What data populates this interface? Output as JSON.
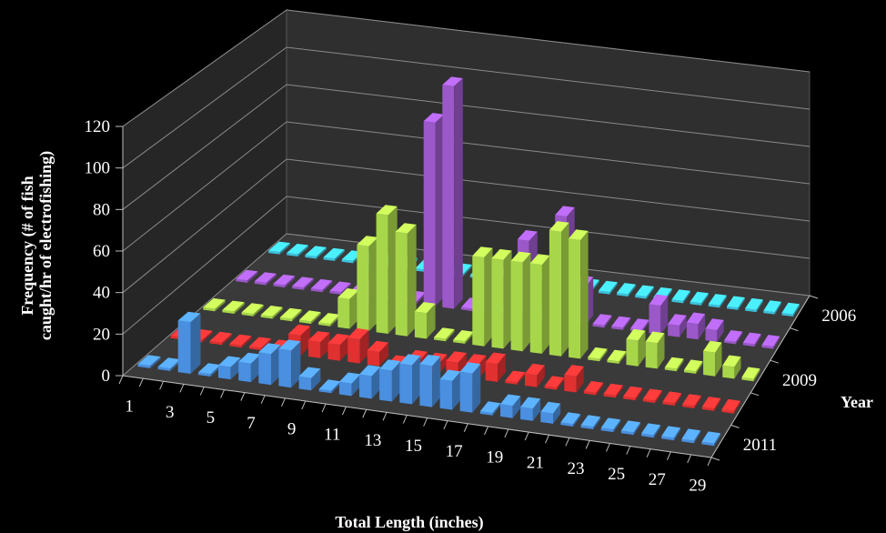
{
  "chart_data": {
    "type": "bar",
    "variant": "3d-bar",
    "title": "",
    "xlabel": "Total Length (inches)",
    "ylabel_lines": [
      "Frequency (# of fish",
      "caught/hr of electrofishing)"
    ],
    "zlabel": "Year",
    "ylim": [
      0,
      120
    ],
    "yticks": [
      "0",
      "20",
      "40",
      "60",
      "80",
      "100",
      "120"
    ],
    "categories": [
      "1",
      "2",
      "3",
      "4",
      "5",
      "6",
      "7",
      "8",
      "9",
      "10",
      "11",
      "12",
      "13",
      "14",
      "15",
      "16",
      "17",
      "18",
      "19",
      "20",
      "21",
      "22",
      "23",
      "24",
      "25",
      "26",
      "27",
      "28",
      "29"
    ],
    "x_tick_labels": [
      "1",
      "3",
      "5",
      "7",
      "9",
      "11",
      "13",
      "15",
      "17",
      "19",
      "21",
      "23",
      "25",
      "27",
      "29"
    ],
    "depth_tick_labels": [
      "2006",
      "2009",
      "2011"
    ],
    "grid": true,
    "legend": "none",
    "series": [
      {
        "name": "2011",
        "color": "#4a8fe0",
        "values": [
          0,
          0,
          25,
          0,
          6,
          9,
          15,
          18,
          6,
          0,
          6,
          11,
          15,
          19,
          20,
          14,
          19,
          0,
          6,
          6,
          5,
          0,
          0,
          0,
          0,
          0,
          0,
          0,
          0
        ]
      },
      {
        "name": "",
        "color": "#e03030",
        "values": [
          0,
          0,
          0,
          0,
          0,
          0,
          10,
          8,
          8,
          12,
          7,
          0,
          5,
          5,
          7,
          7,
          9,
          0,
          6,
          0,
          8,
          0,
          0,
          0,
          0,
          0,
          0,
          0,
          0
        ]
      },
      {
        "name": "2009",
        "color": "#a8d64a",
        "values": [
          0,
          0,
          0,
          0,
          0,
          0,
          0,
          15,
          43,
          60,
          52,
          13,
          0,
          0,
          45,
          45,
          45,
          45,
          63,
          60,
          0,
          0,
          13,
          13,
          0,
          0,
          12,
          6,
          0
        ]
      },
      {
        "name": "",
        "color": "#9a58c8",
        "values": [
          0,
          0,
          0,
          0,
          0,
          0,
          0,
          8,
          0,
          0,
          95,
          115,
          0,
          20,
          0,
          40,
          0,
          55,
          20,
          0,
          0,
          0,
          15,
          6,
          8,
          6,
          0,
          0,
          0
        ]
      },
      {
        "name": "2006",
        "color": "#3cc0dc",
        "values": [
          0,
          0,
          0,
          0,
          0,
          0,
          0,
          0,
          0,
          0,
          0,
          0,
          0,
          0,
          0,
          0,
          0,
          0,
          0,
          0,
          0,
          0,
          0,
          0,
          0,
          0,
          0,
          0,
          0
        ]
      }
    ]
  }
}
